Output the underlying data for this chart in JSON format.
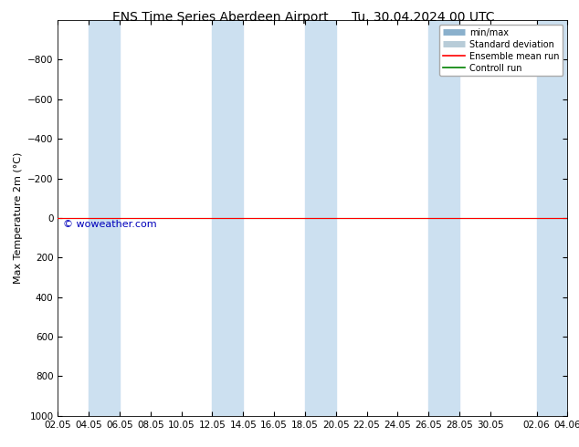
{
  "title": "ENS Time Series Aberdeen Airport",
  "title2": "Tu. 30.04.2024 00 UTC",
  "ylabel": "Max Temperature 2m (°C)",
  "ylim": [
    1000,
    -1000
  ],
  "yticks": [
    -800,
    -600,
    -400,
    -200,
    0,
    200,
    400,
    600,
    800,
    1000
  ],
  "x_tick_labels": [
    "02.05",
    "04.05",
    "06.05",
    "08.05",
    "10.05",
    "12.05",
    "14.05",
    "16.05",
    "18.05",
    "20.05",
    "22.05",
    "24.05",
    "26.05",
    "28.05",
    "30.05",
    "02.06",
    "04.06"
  ],
  "x_tick_positions": [
    0,
    2,
    4,
    6,
    8,
    10,
    12,
    14,
    16,
    18,
    20,
    22,
    24,
    26,
    28,
    31,
    33
  ],
  "num_days": 33,
  "shaded_bands": [
    [
      2,
      4
    ],
    [
      10,
      12
    ],
    [
      16,
      18
    ],
    [
      24,
      26
    ],
    [
      31,
      33
    ]
  ],
  "background_color": "#ffffff",
  "plot_bg_color": "#ffffff",
  "band_color": "#cce0f0",
  "control_run_y": 0.0,
  "ensemble_mean_y": 0.0,
  "control_run_color": "#008000",
  "ensemble_mean_color": "#ff0000",
  "minmax_color": "#b0cce0",
  "std_color": "#ccdde8",
  "watermark": "© woweather.com",
  "watermark_color": "#0000bb",
  "legend_labels": [
    "min/max",
    "Standard deviation",
    "Ensemble mean run",
    "Controll run"
  ],
  "legend_line_colors": [
    "#8ab0cc",
    "#b8ccd8",
    "#ff0000",
    "#008000"
  ],
  "title_fontsize": 10,
  "axis_fontsize": 8,
  "tick_fontsize": 7.5
}
